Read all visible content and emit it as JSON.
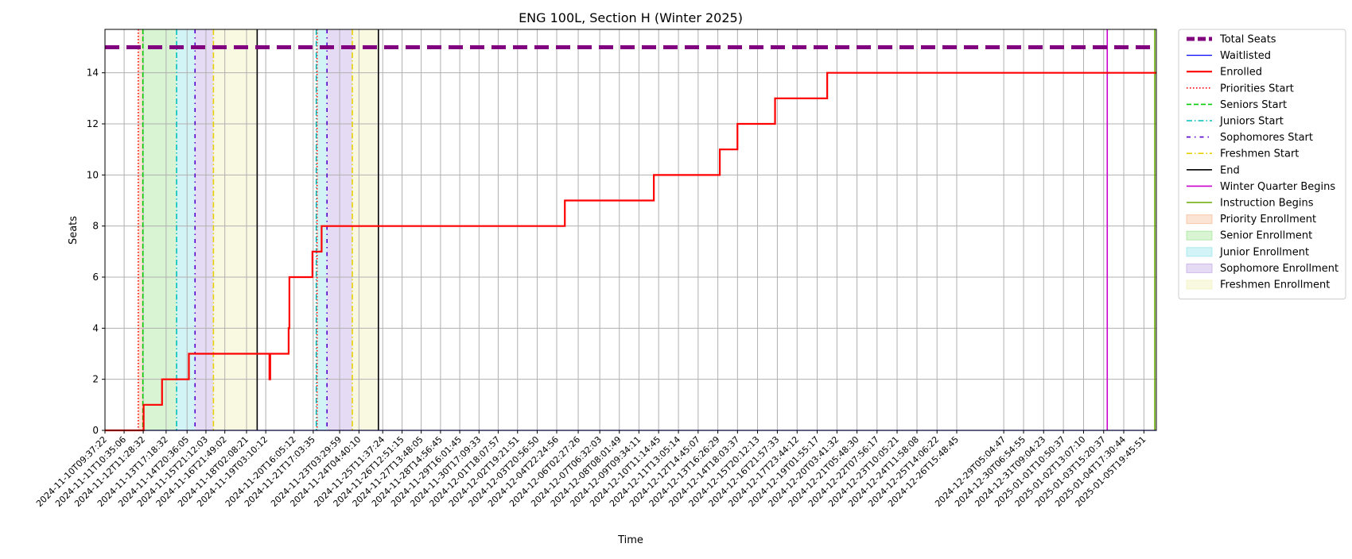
{
  "chart_data": {
    "type": "line",
    "title": "ENG 100L, Section H (Winter 2025)",
    "xlabel": "Time",
    "ylabel": "Seats",
    "x_range": [
      "2024-11-10T09:37:22",
      "2025-01-06T12:00:00"
    ],
    "ylim": [
      0,
      15.7
    ],
    "grid": true,
    "legend_placement": "outside-right-top",
    "y_ticks": [
      0,
      2,
      4,
      6,
      8,
      10,
      12,
      14
    ],
    "x_tick_labels": [
      "2024-11-10T09:37:22",
      "2024-11-11T10:35:06",
      "2024-11-12T11:28:32",
      "2024-11-13T17:18:32",
      "2024-11-14T20:36:05",
      "2024-11-15T21:12:03",
      "2024-11-16T21:49:02",
      "2024-11-18T02:08:21",
      "2024-11-19T03:10:12",
      "2024-11-20T16:05:12",
      "2024-11-21T17:03:35",
      "2024-11-23T03:29:59",
      "2024-11-24T04:40:10",
      "2024-11-25T11:37:24",
      "2024-11-26T12:51:15",
      "2024-11-27T13:48:05",
      "2024-11-28T14:56:45",
      "2024-11-29T16:01:45",
      "2024-11-30T17:09:33",
      "2024-12-01T18:07:57",
      "2024-12-02T19:21:51",
      "2024-12-03T20:56:50",
      "2024-12-04T22:24:56",
      "2024-12-06T02:27:26",
      "2024-12-07T06:32:03",
      "2024-12-08T08:01:49",
      "2024-12-09T09:34:11",
      "2024-12-10T11:14:45",
      "2024-12-11T13:05:14",
      "2024-12-12T14:45:07",
      "2024-12-13T16:26:29",
      "2024-12-14T18:03:37",
      "2024-12-15T20:12:13",
      "2024-12-16T21:57:33",
      "2024-12-17T23:44:12",
      "2024-12-19T01:55:17",
      "2024-12-20T03:41:32",
      "2024-12-21T05:48:30",
      "2024-12-22T07:56:17",
      "2024-12-23T10:05:21",
      "2024-12-24T11:58:08",
      "2024-12-25T14:06:22",
      "2024-12-26T15:48:45",
      "2024-12-29T05:04:47",
      "2024-12-30T06:54:55",
      "2024-12-31T09:04:23",
      "2025-01-01T10:50:37",
      "2025-01-02T13:07:10",
      "2025-01-03T15:20:37",
      "2025-01-04T17:30:44",
      "2025-01-05T19:45:51"
    ],
    "series": [
      {
        "name": "Total Seats",
        "color": "#800080",
        "style": "dashed",
        "width": "thick",
        "points": [
          [
            "2024-11-10T09:37:22",
            15
          ],
          [
            "2025-01-06T12:00:00",
            15
          ]
        ]
      },
      {
        "name": "Waitlisted",
        "color": "#0000ff",
        "style": "solid",
        "points": [
          [
            "2024-11-10T09:37:22",
            0
          ],
          [
            "2025-01-06T12:00:00",
            0
          ]
        ]
      },
      {
        "name": "Enrolled",
        "color": "#ff0000",
        "style": "solid",
        "step": true,
        "points": [
          [
            "2024-11-10T09:37:22",
            0
          ],
          [
            "2024-11-12T12:00:00",
            1
          ],
          [
            "2024-11-13T12:00:00",
            2
          ],
          [
            "2024-11-14T23:00:00",
            3
          ],
          [
            "2024-11-19T08:00:00",
            2
          ],
          [
            "2024-11-19T09:00:00",
            3
          ],
          [
            "2024-11-20T09:00:00",
            4
          ],
          [
            "2024-11-20T10:00:00",
            6
          ],
          [
            "2024-11-21T16:00:00",
            7
          ],
          [
            "2024-11-22T04:00:00",
            8
          ],
          [
            "2024-12-05T09:00:00",
            9
          ],
          [
            "2024-12-10T05:00:00",
            10
          ],
          [
            "2024-12-13T19:00:00",
            11
          ],
          [
            "2024-12-14T18:00:00",
            12
          ],
          [
            "2024-12-16T19:00:00",
            13
          ],
          [
            "2024-12-19T15:00:00",
            14
          ],
          [
            "2025-01-06T12:00:00",
            14
          ]
        ]
      }
    ],
    "vlines": [
      {
        "name": "Priorities Start",
        "color": "#ff0000",
        "style": "dotted",
        "x": [
          "2024-11-12T05:00:00",
          "2024-11-21T22:00:00"
        ]
      },
      {
        "name": "Seniors Start",
        "color": "#00cc00",
        "style": "dashed",
        "x": [
          "2024-11-12T11:00:00"
        ]
      },
      {
        "name": "Juniors Start",
        "color": "#00bfbf",
        "style": "dashdot",
        "x": [
          "2024-11-14T07:00:00",
          "2024-11-21T21:00:00"
        ]
      },
      {
        "name": "Sophomores Start",
        "color": "#5500cc",
        "style": "dashdotted",
        "x": [
          "2024-11-15T07:00:00",
          "2024-11-22T11:00:00"
        ]
      },
      {
        "name": "Freshmen Start",
        "color": "#e6d000",
        "style": "dashdot",
        "x": [
          "2024-11-16T07:00:00",
          "2024-11-23T20:00:00"
        ]
      },
      {
        "name": "End",
        "color": "#000000",
        "style": "solid",
        "x": [
          "2024-11-18T16:00:00",
          "2024-11-25T06:00:00"
        ]
      },
      {
        "name": "Winter Quarter Begins",
        "color": "#cc00cc",
        "style": "solid",
        "x": [
          "2025-01-03T20:00:00"
        ]
      },
      {
        "name": "Instruction Begins",
        "color": "#66aa00",
        "style": "solid",
        "x": [
          "2025-01-06T10:00:00"
        ]
      }
    ],
    "spans": [
      {
        "name": "Priority Enrollment",
        "color": "#f4b183",
        "periods": [
          [
            "2024-11-12T05:00:00",
            "2024-11-12T11:00:00"
          ],
          [
            "2024-11-21T22:00:00",
            "2024-11-21T23:00:00"
          ]
        ]
      },
      {
        "name": "Senior Enrollment",
        "color": "#90e080",
        "periods": [
          [
            "2024-11-12T11:00:00",
            "2024-11-14T07:00:00"
          ]
        ]
      },
      {
        "name": "Junior Enrollment",
        "color": "#80e0e8",
        "periods": [
          [
            "2024-11-14T07:00:00",
            "2024-11-15T07:00:00"
          ],
          [
            "2024-11-21T23:00:00",
            "2024-11-22T11:00:00"
          ]
        ]
      },
      {
        "name": "Sophomore Enrollment",
        "color": "#b898e0",
        "periods": [
          [
            "2024-11-15T07:00:00",
            "2024-11-16T07:00:00"
          ],
          [
            "2024-11-22T11:00:00",
            "2024-11-23T20:00:00"
          ]
        ]
      },
      {
        "name": "Freshmen Enrollment",
        "color": "#eeeeaa",
        "periods": [
          [
            "2024-11-16T07:00:00",
            "2024-11-18T16:00:00"
          ],
          [
            "2024-11-23T20:00:00",
            "2024-11-25T06:00:00"
          ]
        ]
      }
    ],
    "legend": [
      "Total Seats",
      "Waitlisted",
      "Enrolled",
      "Priorities Start",
      "Seniors Start",
      "Juniors Start",
      "Sophomores Start",
      "Freshmen Start",
      "End",
      "Winter Quarter Begins",
      "Instruction Begins",
      "Priority Enrollment",
      "Senior Enrollment",
      "Junior Enrollment",
      "Sophomore Enrollment",
      "Freshmen Enrollment"
    ]
  }
}
